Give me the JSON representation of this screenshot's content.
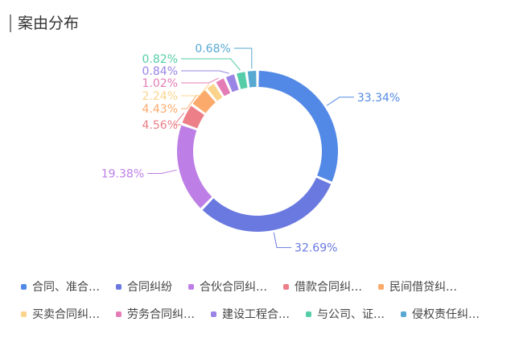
{
  "title": "案由分布",
  "chart_data": {
    "type": "pie",
    "donut": true,
    "title": "案由分布",
    "legend_position": "bottom",
    "categories": [
      "合同、准合…",
      "合同纠纷",
      "合伙合同纠…",
      "借款合同纠…",
      "民间借贷纠…",
      "买卖合同纠…",
      "劳务合同纠…",
      "建设工程合…",
      "与公司、证…",
      "侵权责任纠…"
    ],
    "values": [
      33.34,
      32.69,
      19.38,
      4.56,
      4.43,
      2.24,
      1.02,
      0.84,
      0.82,
      0.68
    ],
    "labels": [
      "33.34%",
      "32.69%",
      "19.38%",
      "4.56%",
      "4.43%",
      "2.24%",
      "1.02%",
      "0.84%",
      "0.82%",
      "0.68%"
    ],
    "colors": [
      "#5389e6",
      "#6a79e0",
      "#bd7fe6",
      "#ec7f88",
      "#fcaa6c",
      "#fbd48c",
      "#e47db6",
      "#9a84e6",
      "#55cda7",
      "#57a9d2"
    ]
  }
}
